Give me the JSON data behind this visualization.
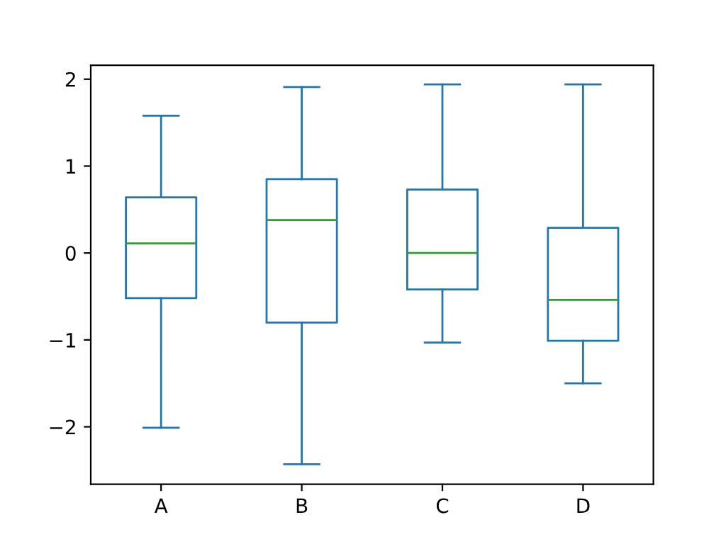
{
  "chart_data": {
    "type": "box",
    "categories": [
      "A",
      "B",
      "C",
      "D"
    ],
    "boxes": [
      {
        "low": -2.01,
        "q1": -0.52,
        "median": 0.11,
        "q3": 0.64,
        "high": 1.58
      },
      {
        "low": -2.43,
        "q1": -0.8,
        "median": 0.38,
        "q3": 0.85,
        "high": 1.91
      },
      {
        "low": -1.03,
        "q1": -0.42,
        "median": 0.0,
        "q3": 0.73,
        "high": 1.94
      },
      {
        "low": -1.5,
        "q1": -1.01,
        "median": -0.54,
        "q3": 0.29,
        "high": 1.94
      }
    ],
    "color": "#1f77b4",
    "ylim": [
      -2.66,
      2.16
    ],
    "yticks": [
      {
        "value": -2,
        "label": "−2"
      },
      {
        "value": -1,
        "label": "−1"
      },
      0,
      1,
      2
    ],
    "grid": false
  }
}
